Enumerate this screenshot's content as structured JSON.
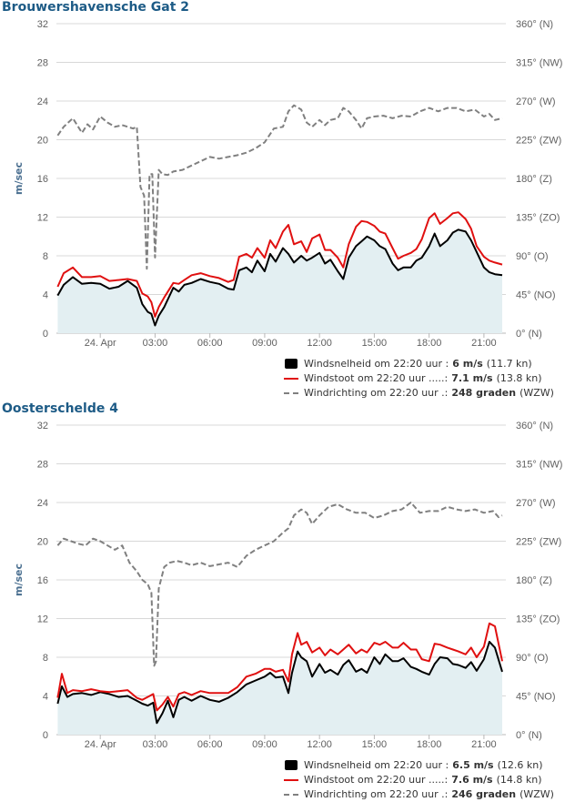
{
  "colors": {
    "speed": "#000000",
    "gust": "#e01010",
    "direction": "#808080",
    "area_fill": "#e3eff2",
    "title": "#1d5b86",
    "grid": "#d8d8d8"
  },
  "chart_data": [
    {
      "type": "line",
      "title": "Brouwershavensche Gat 2",
      "ylabel": "m/sec",
      "ylim": [
        0,
        32
      ],
      "y_ticks": [
        "0",
        "4",
        "8",
        "12",
        "16",
        "20",
        "24",
        "28",
        "32"
      ],
      "y2_ticks": [
        "0° (N)",
        "45° (NO)",
        "90° (O)",
        "135° (ZO)",
        "180° (Z)",
        "225° (ZW)",
        "270° (W)",
        "315° (NW)",
        "360° (N)"
      ],
      "y2lim": [
        0,
        360
      ],
      "x_ticks": [
        "24. Apr",
        "03:00",
        "06:00",
        "09:00",
        "12:00",
        "15:00",
        "18:00",
        "21:00"
      ],
      "x_tick_hours": [
        0,
        3,
        6,
        9,
        12,
        15,
        18,
        21
      ],
      "xlim_hours": [
        -2.4,
        22.2
      ],
      "grid": true,
      "series": [
        {
          "name": "Windsnelheid",
          "axis": "left",
          "style": "area",
          "x": [
            -2.33,
            -2.0,
            -1.5,
            -1.0,
            -0.5,
            0.0,
            0.5,
            1.0,
            1.5,
            2.0,
            2.3,
            2.6,
            2.8,
            3.0,
            3.2,
            3.5,
            4.0,
            4.3,
            4.6,
            5.0,
            5.5,
            6.0,
            6.5,
            7.0,
            7.3,
            7.6,
            8.0,
            8.3,
            8.6,
            9.0,
            9.3,
            9.6,
            10.0,
            10.3,
            10.6,
            11.0,
            11.3,
            11.6,
            12.0,
            12.3,
            12.6,
            13.0,
            13.3,
            13.6,
            14.0,
            14.3,
            14.6,
            15.0,
            15.3,
            15.6,
            16.0,
            16.3,
            16.6,
            17.0,
            17.3,
            17.6,
            18.0,
            18.3,
            18.6,
            19.0,
            19.3,
            19.6,
            20.0,
            20.3,
            20.6,
            21.0,
            21.3,
            21.6,
            22.0
          ],
          "values": [
            3.9,
            5.0,
            5.8,
            5.1,
            5.2,
            5.1,
            4.6,
            4.8,
            5.4,
            4.7,
            3.0,
            2.2,
            2.0,
            0.8,
            1.8,
            2.7,
            4.7,
            4.3,
            5.0,
            5.2,
            5.6,
            5.3,
            5.1,
            4.6,
            4.5,
            6.5,
            6.8,
            6.3,
            7.5,
            6.4,
            8.2,
            7.4,
            8.8,
            8.2,
            7.3,
            8.0,
            7.5,
            7.8,
            8.3,
            7.2,
            7.6,
            6.4,
            5.6,
            7.8,
            9.0,
            9.5,
            10.0,
            9.6,
            9.0,
            8.7,
            7.2,
            6.5,
            6.8,
            6.8,
            7.5,
            7.8,
            9.0,
            10.3,
            9.0,
            9.6,
            10.4,
            10.7,
            10.5,
            9.6,
            8.4,
            6.8,
            6.3,
            6.1,
            6.0
          ]
        },
        {
          "name": "Windstoot",
          "axis": "left",
          "style": "line",
          "x": [
            -2.33,
            -2.0,
            -1.5,
            -1.0,
            -0.5,
            0.0,
            0.5,
            1.0,
            1.5,
            2.0,
            2.3,
            2.6,
            2.8,
            3.0,
            3.2,
            3.5,
            4.0,
            4.3,
            4.6,
            5.0,
            5.5,
            6.0,
            6.5,
            7.0,
            7.3,
            7.6,
            8.0,
            8.3,
            8.6,
            9.0,
            9.3,
            9.6,
            10.0,
            10.3,
            10.6,
            11.0,
            11.3,
            11.6,
            12.0,
            12.3,
            12.6,
            13.0,
            13.3,
            13.6,
            14.0,
            14.3,
            14.6,
            15.0,
            15.3,
            15.6,
            16.0,
            16.3,
            16.6,
            17.0,
            17.3,
            17.6,
            18.0,
            18.3,
            18.6,
            19.0,
            19.3,
            19.6,
            20.0,
            20.3,
            20.6,
            21.0,
            21.3,
            21.6,
            22.0
          ],
          "values": [
            4.8,
            6.2,
            6.8,
            5.8,
            5.8,
            5.9,
            5.4,
            5.5,
            5.6,
            5.4,
            4.1,
            3.8,
            3.2,
            1.7,
            2.7,
            3.7,
            5.2,
            5.1,
            5.5,
            6.0,
            6.2,
            5.9,
            5.7,
            5.3,
            5.5,
            7.9,
            8.2,
            7.8,
            8.8,
            7.8,
            9.6,
            8.8,
            10.5,
            11.2,
            9.2,
            9.5,
            8.4,
            9.8,
            10.2,
            8.6,
            8.6,
            7.8,
            6.8,
            9.2,
            11.0,
            11.6,
            11.5,
            11.1,
            10.5,
            10.3,
            8.8,
            7.7,
            8.0,
            8.3,
            8.7,
            9.7,
            11.9,
            12.4,
            11.3,
            11.9,
            12.4,
            12.5,
            11.8,
            10.8,
            9.0,
            7.9,
            7.5,
            7.3,
            7.1
          ]
        },
        {
          "name": "Windrichting",
          "axis": "right",
          "style": "dashed",
          "x": [
            -2.33,
            -2.0,
            -1.5,
            -1.0,
            -0.7,
            -0.4,
            0.0,
            0.4,
            0.8,
            1.2,
            1.5,
            1.8,
            2.0,
            2.2,
            2.4,
            2.55,
            2.7,
            2.85,
            3.0,
            3.2,
            3.4,
            3.7,
            4.0,
            4.5,
            5.0,
            5.5,
            6.0,
            6.5,
            7.0,
            7.5,
            8.0,
            8.5,
            9.0,
            9.5,
            10.0,
            10.3,
            10.6,
            11.0,
            11.3,
            11.6,
            12.0,
            12.3,
            12.6,
            13.0,
            13.3,
            13.6,
            14.0,
            14.3,
            14.6,
            15.0,
            15.5,
            16.0,
            16.5,
            17.0,
            17.5,
            18.0,
            18.5,
            19.0,
            19.5,
            20.0,
            20.5,
            21.0,
            21.3,
            21.6,
            22.0
          ],
          "values": [
            230,
            240,
            250,
            233,
            243,
            237,
            252,
            245,
            240,
            242,
            240,
            238,
            240,
            170,
            160,
            75,
            185,
            185,
            88,
            190,
            185,
            184,
            188,
            190,
            195,
            200,
            205,
            203,
            205,
            207,
            210,
            215,
            222,
            238,
            240,
            258,
            265,
            260,
            245,
            240,
            248,
            242,
            248,
            250,
            262,
            258,
            248,
            238,
            250,
            252,
            253,
            250,
            253,
            252,
            258,
            262,
            258,
            262,
            262,
            258,
            260,
            252,
            255,
            248,
            250
          ]
        }
      ],
      "legend": [
        {
          "label": "Windsnelheid om 22:20 uur :",
          "value": "6 m/s",
          "extra": "(11.7 kn)"
        },
        {
          "label": "Windstoot om 22:20 uur .....:",
          "value": "7.1 m/s",
          "extra": "(13.8 kn)"
        },
        {
          "label": "Windrichting om 22:20 uur .:",
          "value": "248 graden",
          "extra": "(WZW)"
        }
      ]
    },
    {
      "type": "line",
      "title": "Oosterschelde 4",
      "ylabel": "m/sec",
      "ylim": [
        0,
        32
      ],
      "y_ticks": [
        "0",
        "4",
        "8",
        "12",
        "16",
        "20",
        "24",
        "28",
        "32"
      ],
      "y2_ticks": [
        "0° (N)",
        "45° (NO)",
        "90° (O)",
        "135° (ZO)",
        "180° (Z)",
        "225° (ZW)",
        "270° (W)",
        "315° (NW)",
        "360° (N)"
      ],
      "y2lim": [
        0,
        360
      ],
      "x_ticks": [
        "24. Apr",
        "03:00",
        "06:00",
        "09:00",
        "12:00",
        "15:00",
        "18:00",
        "21:00"
      ],
      "x_tick_hours": [
        0,
        3,
        6,
        9,
        12,
        15,
        18,
        21
      ],
      "xlim_hours": [
        -2.4,
        22.2
      ],
      "grid": true,
      "series": [
        {
          "name": "Windsnelheid",
          "axis": "left",
          "style": "area",
          "x": [
            -2.33,
            -2.1,
            -1.8,
            -1.5,
            -1.0,
            -0.5,
            0.0,
            0.5,
            1.0,
            1.5,
            2.0,
            2.3,
            2.6,
            2.9,
            3.1,
            3.4,
            3.7,
            4.0,
            4.3,
            4.6,
            5.0,
            5.5,
            6.0,
            6.5,
            7.0,
            7.5,
            8.0,
            8.5,
            9.0,
            9.3,
            9.6,
            10.0,
            10.3,
            10.5,
            10.8,
            11.0,
            11.3,
            11.6,
            12.0,
            12.3,
            12.6,
            13.0,
            13.3,
            13.6,
            14.0,
            14.3,
            14.6,
            15.0,
            15.3,
            15.6,
            16.0,
            16.3,
            16.6,
            17.0,
            17.3,
            17.6,
            18.0,
            18.3,
            18.6,
            19.0,
            19.3,
            19.6,
            20.0,
            20.3,
            20.6,
            21.0,
            21.3,
            21.6,
            22.0
          ],
          "values": [
            3.2,
            5.0,
            3.9,
            4.2,
            4.3,
            4.1,
            4.4,
            4.2,
            3.9,
            4.0,
            3.5,
            3.2,
            3.0,
            3.3,
            1.2,
            2.2,
            3.5,
            1.8,
            3.6,
            3.9,
            3.5,
            4.0,
            3.6,
            3.4,
            3.8,
            4.4,
            5.2,
            5.6,
            6.0,
            6.4,
            5.9,
            6.0,
            4.3,
            6.4,
            8.6,
            8.0,
            7.6,
            6.0,
            7.3,
            6.4,
            6.7,
            6.2,
            7.2,
            7.7,
            6.5,
            6.8,
            6.4,
            8.0,
            7.3,
            8.3,
            7.6,
            7.6,
            7.9,
            7.0,
            6.8,
            6.5,
            6.2,
            7.3,
            8.0,
            7.9,
            7.3,
            7.2,
            6.9,
            7.5,
            6.6,
            7.8,
            9.6,
            9.0,
            6.5
          ]
        },
        {
          "name": "Windstoot",
          "axis": "left",
          "style": "line",
          "x": [
            -2.33,
            -2.1,
            -1.8,
            -1.5,
            -1.0,
            -0.5,
            0.0,
            0.5,
            1.0,
            1.5,
            2.0,
            2.3,
            2.6,
            2.9,
            3.1,
            3.4,
            3.7,
            4.0,
            4.3,
            4.6,
            5.0,
            5.5,
            6.0,
            6.5,
            7.0,
            7.5,
            8.0,
            8.5,
            9.0,
            9.3,
            9.6,
            10.0,
            10.3,
            10.5,
            10.8,
            11.0,
            11.3,
            11.6,
            12.0,
            12.3,
            12.6,
            13.0,
            13.3,
            13.6,
            14.0,
            14.3,
            14.6,
            15.0,
            15.3,
            15.6,
            16.0,
            16.3,
            16.6,
            17.0,
            17.3,
            17.6,
            18.0,
            18.3,
            18.6,
            19.0,
            19.3,
            19.6,
            20.0,
            20.3,
            20.6,
            21.0,
            21.3,
            21.6,
            22.0
          ],
          "values": [
            3.8,
            6.3,
            4.3,
            4.6,
            4.5,
            4.7,
            4.5,
            4.4,
            4.5,
            4.6,
            3.8,
            3.6,
            3.9,
            4.2,
            2.5,
            3.1,
            3.9,
            2.9,
            4.2,
            4.4,
            4.1,
            4.5,
            4.3,
            4.3,
            4.3,
            4.9,
            6.0,
            6.3,
            6.8,
            6.8,
            6.5,
            6.7,
            5.5,
            8.3,
            10.5,
            9.3,
            9.6,
            8.5,
            9.0,
            8.2,
            8.8,
            8.3,
            8.8,
            9.3,
            8.4,
            8.8,
            8.5,
            9.5,
            9.3,
            9.6,
            9.0,
            9.0,
            9.5,
            8.8,
            8.8,
            7.8,
            7.6,
            9.4,
            9.3,
            9.0,
            8.8,
            8.6,
            8.3,
            9.0,
            8.0,
            9.1,
            11.5,
            11.2,
            7.6
          ]
        },
        {
          "name": "Windrichting",
          "axis": "right",
          "style": "dashed",
          "x": [
            -2.33,
            -2.0,
            -1.6,
            -1.2,
            -0.8,
            -0.4,
            0.0,
            0.4,
            0.8,
            1.2,
            1.6,
            2.0,
            2.3,
            2.6,
            2.8,
            2.95,
            3.05,
            3.2,
            3.5,
            3.8,
            4.2,
            4.6,
            5.0,
            5.5,
            6.0,
            6.5,
            7.0,
            7.5,
            8.0,
            8.5,
            9.0,
            9.5,
            10.0,
            10.3,
            10.6,
            11.0,
            11.3,
            11.6,
            12.0,
            12.5,
            13.0,
            13.5,
            14.0,
            14.5,
            15.0,
            15.5,
            16.0,
            16.5,
            17.0,
            17.5,
            18.0,
            18.5,
            19.0,
            19.5,
            20.0,
            20.5,
            21.0,
            21.5,
            21.8,
            22.0
          ],
          "values": [
            220,
            228,
            225,
            222,
            220,
            228,
            225,
            220,
            215,
            220,
            200,
            190,
            180,
            175,
            165,
            80,
            85,
            170,
            195,
            200,
            202,
            200,
            197,
            200,
            196,
            198,
            200,
            195,
            208,
            215,
            220,
            225,
            235,
            240,
            255,
            262,
            258,
            245,
            255,
            265,
            268,
            262,
            258,
            258,
            252,
            255,
            260,
            262,
            270,
            258,
            260,
            260,
            265,
            262,
            260,
            262,
            258,
            260,
            253,
            255
          ]
        }
      ],
      "legend": [
        {
          "label": "Windsnelheid om 22:20 uur :",
          "value": "6.5 m/s",
          "extra": "(12.6 kn)"
        },
        {
          "label": "Windstoot om 22:20 uur .....:",
          "value": "7.6 m/s",
          "extra": "(14.8 kn)"
        },
        {
          "label": "Windrichting om 22:20 uur .:",
          "value": "246 graden",
          "extra": "(WZW)"
        }
      ]
    }
  ]
}
